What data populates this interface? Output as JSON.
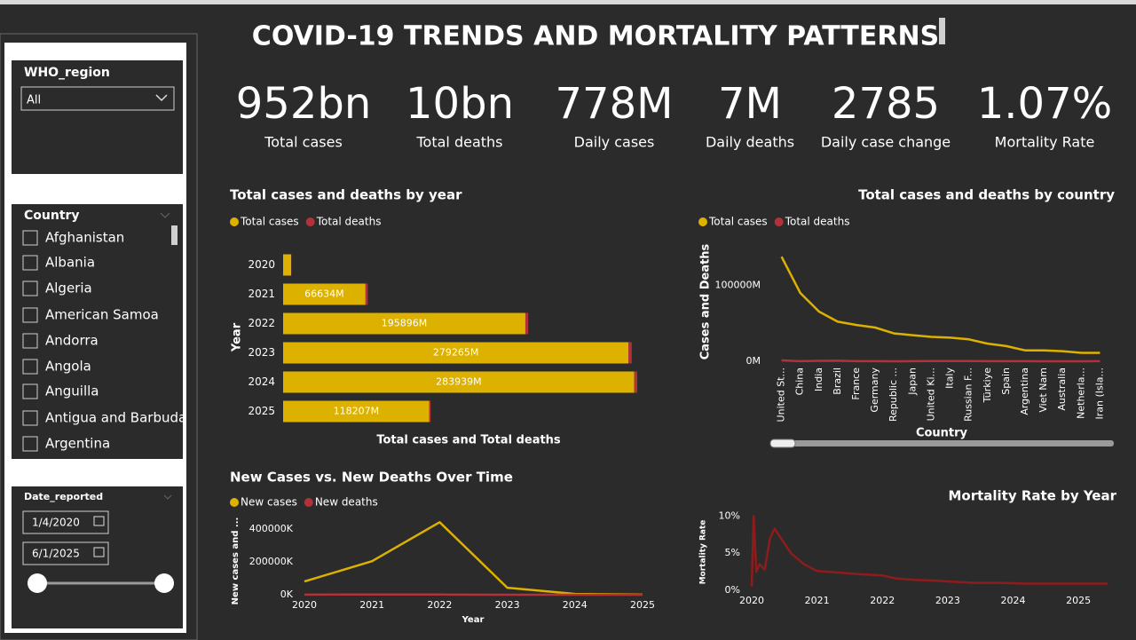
{
  "title": "COVID-19 TRENDS AND MORTALITY PATTERNS",
  "kpis": [
    {
      "value": "952bn",
      "label": "Total cases"
    },
    {
      "value": "10bn",
      "label": "Total deaths"
    },
    {
      "value": "778M",
      "label": "Daily cases"
    },
    {
      "value": "7M",
      "label": "Daily deaths"
    },
    {
      "value": "2785",
      "label": "Daily case change"
    },
    {
      "value": "1.07%",
      "label": "Mortality Rate"
    }
  ],
  "filters": {
    "who_region": {
      "label": "WHO_region",
      "selected": "All"
    },
    "country": {
      "label": "Country",
      "items": [
        "Afghanistan",
        "Albania",
        "Algeria",
        "American Samoa",
        "Andorra",
        "Angola",
        "Anguilla",
        "Antigua and Barbuda",
        "Argentina"
      ]
    },
    "date_reported": {
      "label": "Date_reported",
      "start": "1/4/2020",
      "end": "6/1/2025"
    }
  },
  "chart_data": [
    {
      "type": "bar",
      "orientation": "horizontal",
      "stacked": true,
      "title": "Total cases and deaths by year",
      "x_label": "Total cases and Total deaths",
      "y_label": "Year",
      "categories": [
        "2020",
        "2021",
        "2022",
        "2023",
        "2024",
        "2025"
      ],
      "series": [
        {
          "name": "Total cases",
          "color": "#dcb100",
          "values": [
            6500,
            66634,
            195896,
            279265,
            283939,
            118207
          ],
          "value_labels": [
            null,
            "66634M",
            "195896M",
            "279265M",
            "283939M",
            "118207M"
          ]
        },
        {
          "name": "Total deaths",
          "color": "#b3323a",
          "values": [
            150,
            1800,
            2300,
            2600,
            2400,
            1100
          ]
        }
      ]
    },
    {
      "type": "line",
      "title": "Total cases and deaths by country",
      "x_label": "Country",
      "y_label": "Cases and Deaths",
      "categories": [
        "United St...",
        "China",
        "India",
        "Brazil",
        "France",
        "Germany",
        "Republic ...",
        "Japan",
        "United Ki...",
        "Italy",
        "Russian F...",
        "Türkiye",
        "Spain",
        "Argentina",
        "Viet Nam",
        "Australia",
        "Netherla...",
        "Iran (Isla..."
      ],
      "series": [
        {
          "name": "Total cases",
          "color": "#dcb100",
          "values": [
            137800,
            90000,
            65500,
            52200,
            47800,
            44400,
            36700,
            34400,
            32200,
            31100,
            28900,
            23300,
            20000,
            14400,
            14400,
            13300,
            11100,
            11100
          ]
        },
        {
          "name": "Total deaths",
          "color": "#b3323a",
          "values": [
            1200,
            120,
            530,
            700,
            170,
            175,
            36,
            75,
            230,
            195,
            400,
            100,
            120,
            130,
            43,
            24,
            23,
            146
          ]
        }
      ],
      "ylim": [
        0,
        145000
      ],
      "yticks": [
        {
          "value": 0,
          "label": "0M"
        },
        {
          "value": 100000,
          "label": "100000M"
        }
      ]
    },
    {
      "type": "line",
      "title": "New Cases vs. New Deaths Over Time",
      "x_label": "Year",
      "y_label": "New cases and ...",
      "x": [
        2020,
        2021,
        2022,
        2023,
        2024,
        2025
      ],
      "series": [
        {
          "name": "New cases",
          "color": "#dcb100",
          "values": [
            81000,
            205000,
            443000,
            43000,
            5000,
            1000
          ]
        },
        {
          "name": "New deaths",
          "color": "#b3323a",
          "values": [
            800,
            1800,
            1200,
            200,
            50,
            10
          ]
        }
      ],
      "xlim": [
        2020,
        2025
      ],
      "xticks": [
        2020,
        2021,
        2022,
        2023,
        2024,
        2025
      ],
      "ylim": [
        0,
        450000
      ],
      "yticks": [
        {
          "value": 0,
          "label": "0K"
        },
        {
          "value": 200000,
          "label": "200000K"
        },
        {
          "value": 400000,
          "label": "400000K"
        }
      ]
    },
    {
      "type": "line",
      "title": "Mortality Rate by Year",
      "y_label": "Mortality Rate",
      "x": [
        2020.0,
        2020.03,
        2020.07,
        2020.12,
        2020.2,
        2020.28,
        2020.35,
        2020.45,
        2020.6,
        2020.8,
        2021.0,
        2021.3,
        2021.6,
        2022.0,
        2022.2,
        2022.5,
        2022.8,
        2023.0,
        2023.4,
        2023.8,
        2024.2,
        2024.6,
        2025.0,
        2025.45
      ],
      "series": [
        {
          "color": "#8e1c1c",
          "values": [
            0.5,
            10.0,
            2.5,
            3.5,
            2.8,
            7.0,
            8.3,
            7.0,
            5.0,
            3.5,
            2.6,
            2.4,
            2.2,
            2.0,
            1.6,
            1.4,
            1.3,
            1.2,
            1.0,
            1.0,
            0.9,
            0.9,
            0.9,
            0.9
          ]
        }
      ],
      "xlim": [
        2020,
        2025.5
      ],
      "xticks": [
        2020,
        2021,
        2022,
        2023,
        2024,
        2025
      ],
      "ylim": [
        0,
        11
      ],
      "yticks": [
        {
          "value": 0,
          "label": "0%"
        },
        {
          "value": 5,
          "label": "5%"
        },
        {
          "value": 10,
          "label": "10%"
        }
      ]
    }
  ]
}
